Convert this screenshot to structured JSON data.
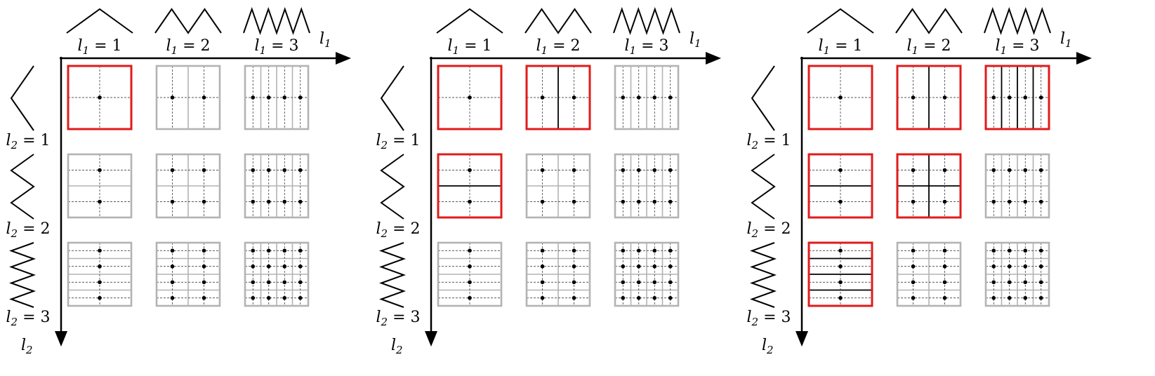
{
  "panels": [
    {
      "highlight": [
        [
          1,
          1
        ]
      ]
    },
    {
      "highlight": [
        [
          1,
          1
        ],
        [
          2,
          1
        ],
        [
          1,
          2
        ]
      ]
    },
    {
      "highlight": [
        [
          1,
          1
        ],
        [
          2,
          1
        ],
        [
          3,
          1
        ],
        [
          1,
          2
        ],
        [
          2,
          2
        ],
        [
          1,
          3
        ]
      ]
    }
  ],
  "levels": [
    1,
    2,
    3
  ],
  "labels": {
    "l1_axis": "l",
    "l1_axis_sub": "1",
    "l2_axis": "l",
    "l2_axis_sub": "2",
    "l1_prefix": "l",
    "l1_sub": "1",
    "eq": " = ",
    "l2_prefix": "l",
    "l2_sub": "2"
  },
  "colors": {
    "highlight": "#e11b1b",
    "inactive": "#b3b3b3",
    "active_line": "#000000",
    "axis": "#000000"
  }
}
